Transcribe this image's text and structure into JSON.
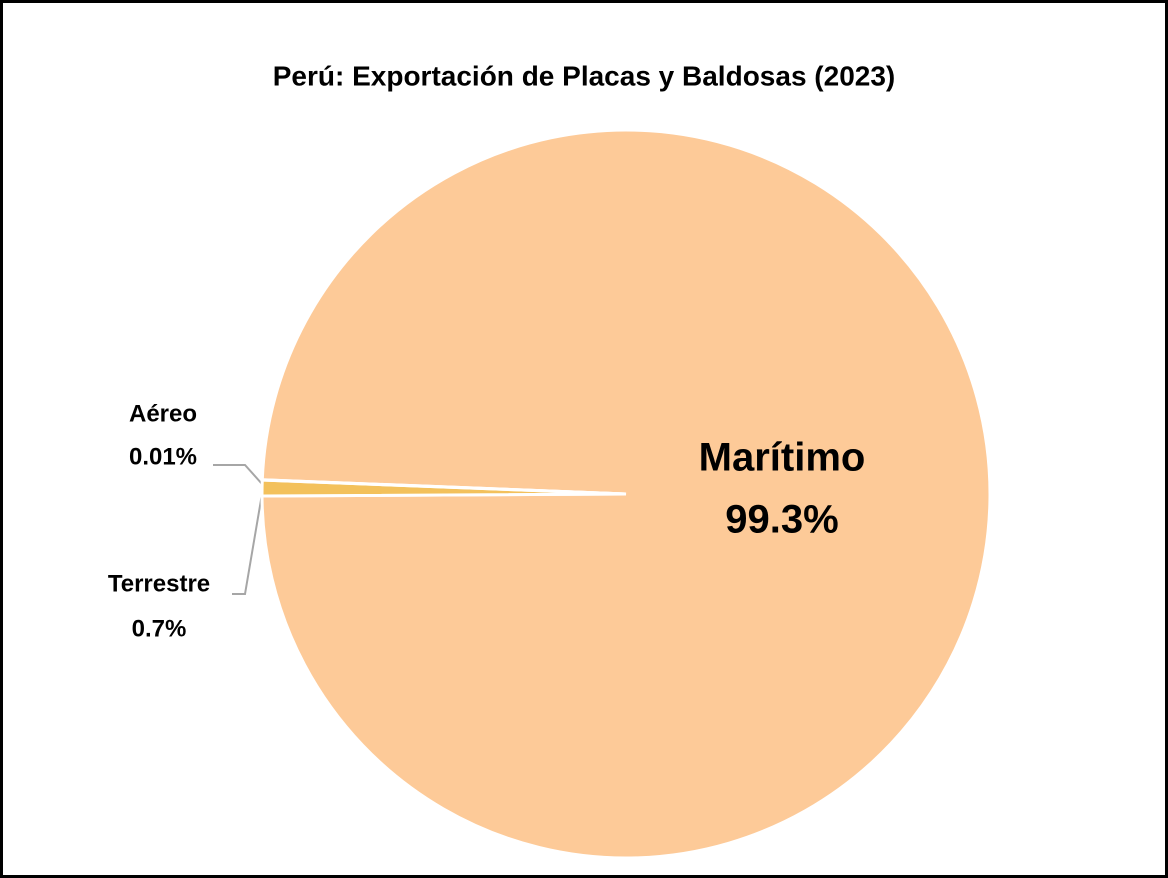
{
  "chart_data": {
    "type": "pie",
    "title": "Perú: Exportación de Placas y Baldosas (2023)",
    "categories": [
      "Marítimo",
      "Terrestre",
      "Aéreo"
    ],
    "values": [
      99.3,
      0.7,
      0.01
    ],
    "value_labels": [
      "99.3%",
      "0.7%",
      "0.01%"
    ],
    "colors": [
      "#fdca98",
      "#f3c15c",
      "#f0b040"
    ]
  }
}
